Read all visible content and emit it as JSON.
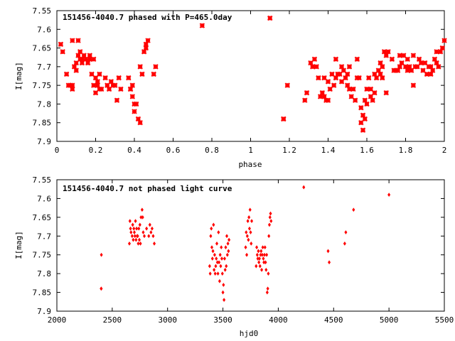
{
  "chart_data": [
    {
      "type": "scatter",
      "title": "151456-4040.7 phased with P=465.0day",
      "xlabel": "phase",
      "ylabel": "I[mag]",
      "xlim": [
        0,
        2
      ],
      "ylim": [
        7.9,
        7.55
      ],
      "y_inverted": true,
      "grid": false,
      "marker": "star",
      "color": "#ff0000",
      "x_ticks": [
        "0",
        "0.2",
        "0.4",
        "0.6",
        "0.8",
        "1",
        "1.2",
        "1.4",
        "1.6",
        "1.8",
        "2"
      ],
      "y_ticks": [
        "7.55",
        "7.6",
        "7.65",
        "7.7",
        "7.75",
        "7.8",
        "7.85",
        "7.9"
      ],
      "points": [
        [
          0.02,
          7.64
        ],
        [
          0.03,
          7.66
        ],
        [
          0.05,
          7.72
        ],
        [
          0.06,
          7.75
        ],
        [
          0.07,
          7.75
        ],
        [
          0.08,
          7.76
        ],
        [
          0.08,
          7.75
        ],
        [
          0.08,
          7.63
        ],
        [
          0.09,
          7.7
        ],
        [
          0.1,
          7.71
        ],
        [
          0.1,
          7.69
        ],
        [
          0.11,
          7.67
        ],
        [
          0.11,
          7.63
        ],
        [
          0.12,
          7.68
        ],
        [
          0.12,
          7.66
        ],
        [
          0.13,
          7.69
        ],
        [
          0.13,
          7.68
        ],
        [
          0.14,
          7.67
        ],
        [
          0.15,
          7.68
        ],
        [
          0.16,
          7.69
        ],
        [
          0.17,
          7.67
        ],
        [
          0.17,
          7.68
        ],
        [
          0.18,
          7.72
        ],
        [
          0.19,
          7.68
        ],
        [
          0.19,
          7.75
        ],
        [
          0.2,
          7.73
        ],
        [
          0.2,
          7.77
        ],
        [
          0.21,
          7.74
        ],
        [
          0.21,
          7.75
        ],
        [
          0.22,
          7.72
        ],
        [
          0.22,
          7.76
        ],
        [
          0.23,
          7.76
        ],
        [
          0.25,
          7.73
        ],
        [
          0.26,
          7.75
        ],
        [
          0.27,
          7.76
        ],
        [
          0.28,
          7.74
        ],
        [
          0.29,
          7.75
        ],
        [
          0.3,
          7.75
        ],
        [
          0.31,
          7.79
        ],
        [
          0.32,
          7.73
        ],
        [
          0.33,
          7.76
        ],
        [
          0.37,
          7.73
        ],
        [
          0.38,
          7.76
        ],
        [
          0.38,
          7.76
        ],
        [
          0.39,
          7.78
        ],
        [
          0.39,
          7.75
        ],
        [
          0.4,
          7.8
        ],
        [
          0.4,
          7.82
        ],
        [
          0.41,
          7.8
        ],
        [
          0.42,
          7.84
        ],
        [
          0.43,
          7.85
        ],
        [
          0.43,
          7.7
        ],
        [
          0.44,
          7.72
        ],
        [
          0.45,
          7.66
        ],
        [
          0.46,
          7.65
        ],
        [
          0.46,
          7.64
        ],
        [
          0.47,
          7.63
        ],
        [
          0.5,
          7.72
        ],
        [
          0.51,
          7.7
        ],
        [
          0.75,
          7.59
        ],
        [
          1.1,
          7.57
        ],
        [
          1.17,
          7.84
        ],
        [
          1.17,
          7.84
        ],
        [
          1.19,
          7.75
        ],
        [
          1.28,
          7.79
        ],
        [
          1.29,
          7.77
        ],
        [
          1.31,
          7.69
        ],
        [
          1.32,
          7.7
        ],
        [
          1.33,
          7.68
        ],
        [
          1.34,
          7.7
        ],
        [
          1.35,
          7.73
        ],
        [
          1.36,
          7.78
        ],
        [
          1.37,
          7.77
        ],
        [
          1.38,
          7.78
        ],
        [
          1.38,
          7.73
        ],
        [
          1.39,
          7.79
        ],
        [
          1.4,
          7.79
        ],
        [
          1.4,
          7.74
        ],
        [
          1.41,
          7.76
        ],
        [
          1.42,
          7.72
        ],
        [
          1.43,
          7.75
        ],
        [
          1.44,
          7.68
        ],
        [
          1.44,
          7.73
        ],
        [
          1.45,
          7.72
        ],
        [
          1.46,
          7.72
        ],
        [
          1.47,
          7.7
        ],
        [
          1.47,
          7.74
        ],
        [
          1.48,
          7.71
        ],
        [
          1.49,
          7.73
        ],
        [
          1.5,
          7.75
        ],
        [
          1.5,
          7.72
        ],
        [
          1.51,
          7.76
        ],
        [
          1.51,
          7.7
        ],
        [
          1.52,
          7.78
        ],
        [
          1.53,
          7.76
        ],
        [
          1.54,
          7.79
        ],
        [
          1.55,
          7.73
        ],
        [
          1.55,
          7.68
        ],
        [
          1.56,
          7.73
        ],
        [
          1.57,
          7.81
        ],
        [
          1.57,
          7.85
        ],
        [
          1.58,
          7.83
        ],
        [
          1.58,
          7.87
        ],
        [
          1.59,
          7.79
        ],
        [
          1.59,
          7.84
        ],
        [
          1.6,
          7.76
        ],
        [
          1.6,
          7.8
        ],
        [
          1.61,
          7.73
        ],
        [
          1.62,
          7.78
        ],
        [
          1.62,
          7.76
        ],
        [
          1.63,
          7.79
        ],
        [
          1.64,
          7.77
        ],
        [
          1.64,
          7.72
        ],
        [
          1.65,
          7.73
        ],
        [
          1.66,
          7.71
        ],
        [
          1.67,
          7.69
        ],
        [
          1.67,
          7.72
        ],
        [
          1.68,
          7.7
        ],
        [
          1.68,
          7.73
        ],
        [
          1.69,
          7.66
        ],
        [
          1.7,
          7.77
        ],
        [
          1.7,
          7.67
        ],
        [
          1.71,
          7.66
        ],
        [
          1.73,
          7.68
        ],
        [
          1.74,
          7.71
        ],
        [
          1.75,
          7.71
        ],
        [
          1.76,
          7.71
        ],
        [
          1.77,
          7.7
        ],
        [
          1.77,
          7.67
        ],
        [
          1.78,
          7.69
        ],
        [
          1.79,
          7.67
        ],
        [
          1.8,
          7.7
        ],
        [
          1.81,
          7.71
        ],
        [
          1.81,
          7.68
        ],
        [
          1.82,
          7.7
        ],
        [
          1.83,
          7.71
        ],
        [
          1.84,
          7.67
        ],
        [
          1.84,
          7.75
        ],
        [
          1.85,
          7.7
        ],
        [
          1.86,
          7.7
        ],
        [
          1.87,
          7.68
        ],
        [
          1.88,
          7.69
        ],
        [
          1.89,
          7.71
        ],
        [
          1.9,
          7.69
        ],
        [
          1.91,
          7.72
        ],
        [
          1.92,
          7.7
        ],
        [
          1.93,
          7.72
        ],
        [
          1.93,
          7.7
        ],
        [
          1.94,
          7.71
        ],
        [
          1.95,
          7.68
        ],
        [
          1.96,
          7.69
        ],
        [
          1.96,
          7.66
        ],
        [
          1.97,
          7.7
        ],
        [
          1.98,
          7.66
        ],
        [
          1.99,
          7.65
        ],
        [
          2.0,
          7.63
        ]
      ]
    },
    {
      "type": "scatter",
      "title": "151456-4040.7 not phased light curve",
      "xlabel": "hjd0",
      "ylabel": "I[mag]",
      "xlim": [
        2000,
        5500
      ],
      "ylim": [
        7.9,
        7.55
      ],
      "y_inverted": true,
      "grid": false,
      "marker": "diamond",
      "color": "#ff0000",
      "x_ticks": [
        "2000",
        "2500",
        "3000",
        "3500",
        "4000",
        "4500",
        "5000",
        "5500"
      ],
      "y_ticks": [
        "7.55",
        "7.6",
        "7.65",
        "7.7",
        "7.75",
        "7.8",
        "7.85",
        "7.9"
      ],
      "points": [
        [
          2400,
          7.84
        ],
        [
          2401,
          7.84
        ],
        [
          2402,
          7.75
        ],
        [
          2655,
          7.72
        ],
        [
          2660,
          7.66
        ],
        [
          2665,
          7.68
        ],
        [
          2670,
          7.69
        ],
        [
          2680,
          7.7
        ],
        [
          2685,
          7.67
        ],
        [
          2690,
          7.71
        ],
        [
          2695,
          7.68
        ],
        [
          2700,
          7.69
        ],
        [
          2705,
          7.7
        ],
        [
          2710,
          7.66
        ],
        [
          2715,
          7.71
        ],
        [
          2720,
          7.68
        ],
        [
          2725,
          7.7
        ],
        [
          2730,
          7.7
        ],
        [
          2735,
          7.72
        ],
        [
          2740,
          7.68
        ],
        [
          2745,
          7.71
        ],
        [
          2750,
          7.67
        ],
        [
          2755,
          7.72
        ],
        [
          2760,
          7.65
        ],
        [
          2770,
          7.63
        ],
        [
          2775,
          7.65
        ],
        [
          2780,
          7.69
        ],
        [
          2790,
          7.7
        ],
        [
          2810,
          7.68
        ],
        [
          2830,
          7.7
        ],
        [
          2840,
          7.67
        ],
        [
          2850,
          7.69
        ],
        [
          2860,
          7.68
        ],
        [
          2870,
          7.7
        ],
        [
          2880,
          7.72
        ],
        [
          3380,
          7.78
        ],
        [
          3385,
          7.8
        ],
        [
          3390,
          7.7
        ],
        [
          3395,
          7.68
        ],
        [
          3400,
          7.73
        ],
        [
          3405,
          7.76
        ],
        [
          3410,
          7.74
        ],
        [
          3415,
          7.67
        ],
        [
          3420,
          7.79
        ],
        [
          3425,
          7.75
        ],
        [
          3430,
          7.8
        ],
        [
          3435,
          7.78
        ],
        [
          3440,
          7.76
        ],
        [
          3445,
          7.72
        ],
        [
          3450,
          7.77
        ],
        [
          3455,
          7.8
        ],
        [
          3460,
          7.69
        ],
        [
          3465,
          7.77
        ],
        [
          3470,
          7.82
        ],
        [
          3475,
          7.75
        ],
        [
          3480,
          7.78
        ],
        [
          3485,
          7.73
        ],
        [
          3490,
          7.76
        ],
        [
          3495,
          7.8
        ],
        [
          3500,
          7.85
        ],
        [
          3505,
          7.83
        ],
        [
          3510,
          7.87
        ],
        [
          3515,
          7.76
        ],
        [
          3520,
          7.79
        ],
        [
          3525,
          7.73
        ],
        [
          3530,
          7.78
        ],
        [
          3535,
          7.7
        ],
        [
          3540,
          7.75
        ],
        [
          3545,
          7.72
        ],
        [
          3550,
          7.74
        ],
        [
          3555,
          7.71
        ],
        [
          3705,
          7.73
        ],
        [
          3710,
          7.69
        ],
        [
          3715,
          7.75
        ],
        [
          3720,
          7.7
        ],
        [
          3725,
          7.66
        ],
        [
          3730,
          7.71
        ],
        [
          3735,
          7.65
        ],
        [
          3740,
          7.68
        ],
        [
          3745,
          7.63
        ],
        [
          3750,
          7.69
        ],
        [
          3755,
          7.72
        ],
        [
          3760,
          7.66
        ],
        [
          3800,
          7.78
        ],
        [
          3805,
          7.73
        ],
        [
          3810,
          7.75
        ],
        [
          3815,
          7.76
        ],
        [
          3820,
          7.74
        ],
        [
          3825,
          7.77
        ],
        [
          3830,
          7.76
        ],
        [
          3835,
          7.78
        ],
        [
          3840,
          7.75
        ],
        [
          3845,
          7.74
        ],
        [
          3850,
          7.79
        ],
        [
          3855,
          7.75
        ],
        [
          3860,
          7.73
        ],
        [
          3865,
          7.76
        ],
        [
          3870,
          7.77
        ],
        [
          3875,
          7.75
        ],
        [
          3880,
          7.73
        ],
        [
          3885,
          7.77
        ],
        [
          3890,
          7.79
        ],
        [
          3895,
          7.75
        ],
        [
          3900,
          7.85
        ],
        [
          3905,
          7.84
        ],
        [
          3910,
          7.8
        ],
        [
          3915,
          7.7
        ],
        [
          3920,
          7.67
        ],
        [
          3925,
          7.65
        ],
        [
          3930,
          7.64
        ],
        [
          3935,
          7.66
        ],
        [
          4230,
          7.57
        ],
        [
          4450,
          7.74
        ],
        [
          4460,
          7.77
        ],
        [
          4600,
          7.72
        ],
        [
          4610,
          7.69
        ],
        [
          4680,
          7.63
        ],
        [
          5000,
          7.59
        ]
      ]
    }
  ]
}
